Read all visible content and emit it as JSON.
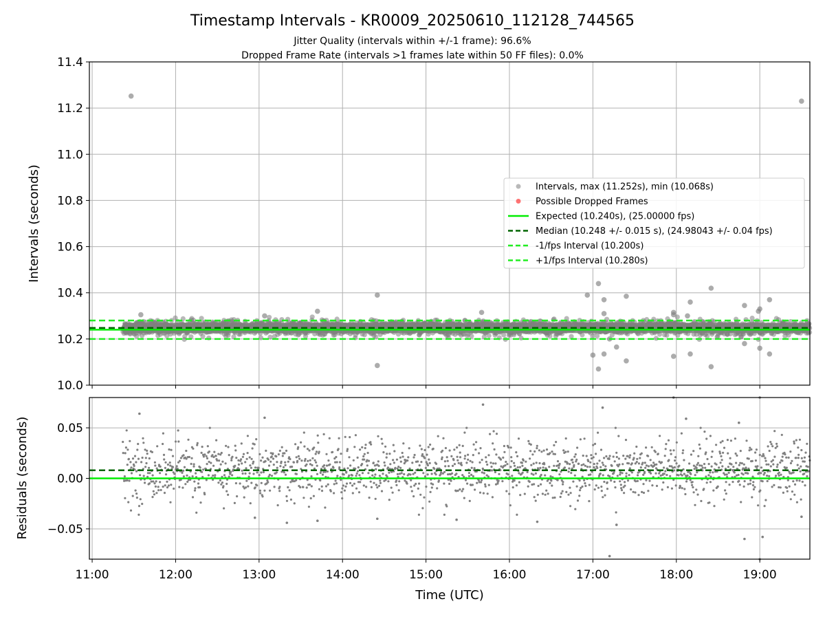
{
  "figure": {
    "title": "Timestamp Intervals - KR0009_20250610_112128_744565",
    "subtitle_1": "Jitter Quality (intervals within +/-1 frame): 96.6%",
    "subtitle_2": "Dropped Frame Rate (intervals >1 frames late within 50 FF files): 0.0%"
  },
  "colors": {
    "intervals": "#808080",
    "dropped": "#ff0000",
    "expected": "#00ee00",
    "median": "#006400",
    "bound": "#22ee22",
    "grid": "#b0b0b0"
  },
  "chart_data": [
    {
      "type": "scatter",
      "id": "intervals",
      "ylabel": "Intervals (seconds)",
      "xlim": [
        "10:58",
        "19:36"
      ],
      "ylim": [
        10.0,
        11.4
      ],
      "yticks": [
        "10.0",
        "10.2",
        "10.4",
        "10.6",
        "10.8",
        "11.0",
        "11.2",
        "11.4"
      ],
      "grid": true,
      "legend_position": "center-right",
      "legend": [
        "Intervals, max (11.252s), min (10.068s)",
        "Possible Dropped Frames",
        "Expected (10.240s), (25.00000 fps)",
        "Median (10.248 +/- 0.015 s), (24.98043 +/- 0.04 fps)",
        "-1/fps Interval (10.200s)",
        "+1/fps Interval (10.280s)"
      ],
      "x_range": [
        "11:22",
        "19:36"
      ],
      "band": {
        "center": 10.248,
        "spread": 0.015
      },
      "reference_lines": {
        "expected": 10.24,
        "median": 10.248,
        "minus_1_fps": 10.2,
        "plus_1_fps": 10.28
      },
      "outliers": [
        {
          "x": "11:28",
          "y": 11.252
        },
        {
          "x": "19:30",
          "y": 11.23
        },
        {
          "x": "11:35",
          "y": 10.305
        },
        {
          "x": "13:04",
          "y": 10.3
        },
        {
          "x": "13:42",
          "y": 10.32
        },
        {
          "x": "14:25",
          "y": 10.39
        },
        {
          "x": "14:25",
          "y": 10.085
        },
        {
          "x": "15:40",
          "y": 10.315
        },
        {
          "x": "16:56",
          "y": 10.39
        },
        {
          "x": "17:00",
          "y": 10.13
        },
        {
          "x": "17:04",
          "y": 10.44
        },
        {
          "x": "17:04",
          "y": 10.07
        },
        {
          "x": "17:08",
          "y": 10.37
        },
        {
          "x": "17:08",
          "y": 10.31
        },
        {
          "x": "17:08",
          "y": 10.135
        },
        {
          "x": "17:12",
          "y": 10.2
        },
        {
          "x": "17:17",
          "y": 10.165
        },
        {
          "x": "17:24",
          "y": 10.385
        },
        {
          "x": "17:24",
          "y": 10.105
        },
        {
          "x": "17:58",
          "y": 10.315
        },
        {
          "x": "17:58",
          "y": 10.305
        },
        {
          "x": "17:58",
          "y": 10.125
        },
        {
          "x": "18:08",
          "y": 10.3
        },
        {
          "x": "18:10",
          "y": 10.36
        },
        {
          "x": "18:10",
          "y": 10.135
        },
        {
          "x": "18:25",
          "y": 10.42
        },
        {
          "x": "18:25",
          "y": 10.08
        },
        {
          "x": "18:49",
          "y": 10.345
        },
        {
          "x": "18:49",
          "y": 10.18
        },
        {
          "x": "18:59",
          "y": 10.32
        },
        {
          "x": "19:00",
          "y": 10.33
        },
        {
          "x": "19:00",
          "y": 10.16
        },
        {
          "x": "19:07",
          "y": 10.37
        },
        {
          "x": "19:07",
          "y": 10.135
        }
      ]
    },
    {
      "type": "scatter",
      "id": "residuals",
      "xlabel": "Time (UTC)",
      "ylabel": "Residuals (seconds)",
      "xlim": [
        "10:58",
        "19:36"
      ],
      "ylim": [
        -0.08,
        0.08
      ],
      "yticks": [
        "−0.05",
        "0.00",
        "0.05"
      ],
      "xticks": [
        "11:00",
        "12:00",
        "13:00",
        "14:00",
        "15:00",
        "16:00",
        "17:00",
        "18:00",
        "19:00"
      ],
      "grid": true,
      "x_range": [
        "11:22",
        "19:36"
      ],
      "band": {
        "center": 0.008,
        "spread": 0.015
      },
      "reference_lines": {
        "expected": 0.0,
        "median": 0.008
      },
      "outliers": [
        {
          "x": "11:34",
          "y": 0.064
        },
        {
          "x": "13:04",
          "y": 0.06
        },
        {
          "x": "15:41",
          "y": 0.073
        },
        {
          "x": "17:07",
          "y": 0.07
        },
        {
          "x": "17:58",
          "y": 0.08
        },
        {
          "x": "18:07",
          "y": 0.059
        },
        {
          "x": "18:45",
          "y": 0.055
        },
        {
          "x": "19:00",
          "y": 0.08
        },
        {
          "x": "12:57",
          "y": -0.039
        },
        {
          "x": "13:20",
          "y": -0.044
        },
        {
          "x": "13:42",
          "y": -0.042
        },
        {
          "x": "14:25",
          "y": -0.04
        },
        {
          "x": "15:22",
          "y": -0.041
        },
        {
          "x": "16:20",
          "y": -0.043
        },
        {
          "x": "17:12",
          "y": -0.077
        },
        {
          "x": "17:17",
          "y": -0.046
        },
        {
          "x": "18:49",
          "y": -0.06
        },
        {
          "x": "19:00",
          "y": -0.08
        },
        {
          "x": "19:02",
          "y": -0.058
        },
        {
          "x": "19:30",
          "y": -0.038
        }
      ]
    }
  ]
}
